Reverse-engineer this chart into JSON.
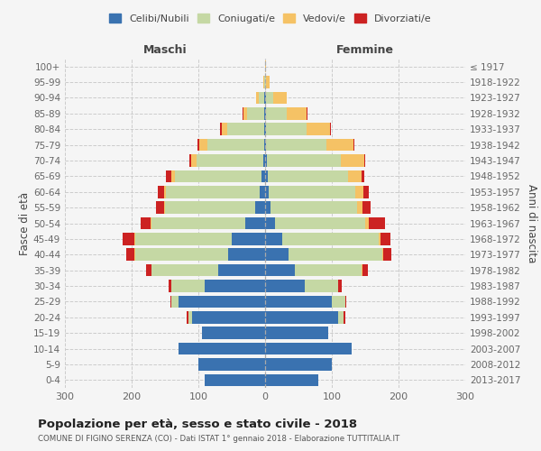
{
  "age_groups": [
    "0-4",
    "5-9",
    "10-14",
    "15-19",
    "20-24",
    "25-29",
    "30-34",
    "35-39",
    "40-44",
    "45-49",
    "50-54",
    "55-59",
    "60-64",
    "65-69",
    "70-74",
    "75-79",
    "80-84",
    "85-89",
    "90-94",
    "95-99",
    "100+"
  ],
  "birth_years": [
    "2013-2017",
    "2008-2012",
    "2003-2007",
    "1998-2002",
    "1993-1997",
    "1988-1992",
    "1983-1987",
    "1978-1982",
    "1973-1977",
    "1968-1972",
    "1963-1967",
    "1958-1962",
    "1953-1957",
    "1948-1952",
    "1943-1947",
    "1938-1942",
    "1933-1937",
    "1928-1932",
    "1923-1927",
    "1918-1922",
    "≤ 1917"
  ],
  "males": {
    "celibe": [
      90,
      100,
      130,
      95,
      110,
      130,
      90,
      70,
      55,
      50,
      30,
      15,
      8,
      5,
      3,
      2,
      2,
      2,
      2,
      0,
      0
    ],
    "coniugato": [
      0,
      0,
      0,
      0,
      5,
      10,
      50,
      100,
      140,
      145,
      140,
      135,
      140,
      130,
      100,
      85,
      55,
      25,
      8,
      2,
      0
    ],
    "vedovo": [
      0,
      0,
      0,
      0,
      0,
      0,
      0,
      0,
      1,
      1,
      1,
      2,
      3,
      5,
      8,
      12,
      8,
      5,
      3,
      1,
      0
    ],
    "divorziato": [
      0,
      0,
      0,
      0,
      2,
      2,
      5,
      8,
      12,
      18,
      15,
      12,
      10,
      8,
      2,
      2,
      2,
      2,
      0,
      0,
      0
    ]
  },
  "females": {
    "nubile": [
      80,
      100,
      130,
      95,
      110,
      100,
      60,
      45,
      35,
      25,
      15,
      8,
      5,
      4,
      3,
      2,
      2,
      2,
      2,
      0,
      0
    ],
    "coniugata": [
      0,
      0,
      0,
      0,
      8,
      20,
      50,
      100,
      140,
      145,
      135,
      130,
      130,
      120,
      110,
      90,
      60,
      30,
      10,
      2,
      0
    ],
    "vedova": [
      0,
      0,
      0,
      0,
      0,
      0,
      0,
      1,
      2,
      3,
      5,
      8,
      12,
      20,
      35,
      40,
      35,
      30,
      20,
      5,
      1
    ],
    "divorziata": [
      0,
      0,
      0,
      0,
      2,
      2,
      5,
      8,
      12,
      15,
      25,
      12,
      8,
      5,
      2,
      2,
      2,
      2,
      0,
      0,
      0
    ]
  },
  "colors": {
    "celibe": "#3a72b0",
    "coniugato": "#c5d8a4",
    "vedovo": "#f5c265",
    "divorziato": "#cc2222"
  },
  "xlim": 300,
  "title": "Popolazione per età, sesso e stato civile - 2018",
  "subtitle": "COMUNE DI FIGINO SERENZA (CO) - Dati ISTAT 1° gennaio 2018 - Elaborazione TUTTITALIA.IT",
  "ylabel_left": "Fasce di età",
  "ylabel_right": "Anni di nascita",
  "xlabel_left": "Maschi",
  "xlabel_right": "Femmine",
  "legend_labels": [
    "Celibi/Nubili",
    "Coniugati/e",
    "Vedovi/e",
    "Divorziati/e"
  ],
  "bg_color": "#f5f5f5",
  "label_color": "#444444",
  "tick_color": "#666666"
}
